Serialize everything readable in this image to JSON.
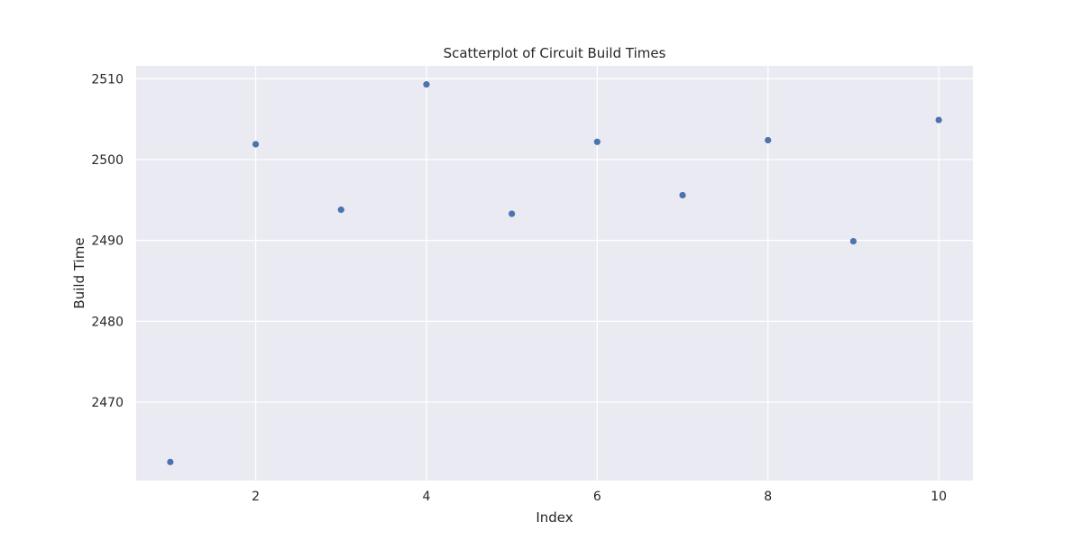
{
  "chart_data": {
    "type": "scatter",
    "title": "Scatterplot of Circuit Build Times",
    "xlabel": "Index",
    "ylabel": "Build Time",
    "xlim": [
      0.6,
      10.4
    ],
    "ylim": [
      2460.3,
      2511.6
    ],
    "xticks": [
      2,
      4,
      6,
      8,
      10
    ],
    "yticks": [
      2470,
      2480,
      2490,
      2500,
      2510
    ],
    "grid": true,
    "colors": {
      "background": "#eaeaf2",
      "grid": "#ffffff",
      "point": "#4c72b0"
    },
    "series": [
      {
        "x": [
          1,
          2,
          3,
          4,
          5,
          6,
          7,
          8,
          9,
          10
        ],
        "y": [
          2462.6,
          2501.9,
          2493.8,
          2509.3,
          2493.3,
          2502.2,
          2495.6,
          2502.4,
          2489.9,
          2504.9
        ]
      }
    ]
  }
}
